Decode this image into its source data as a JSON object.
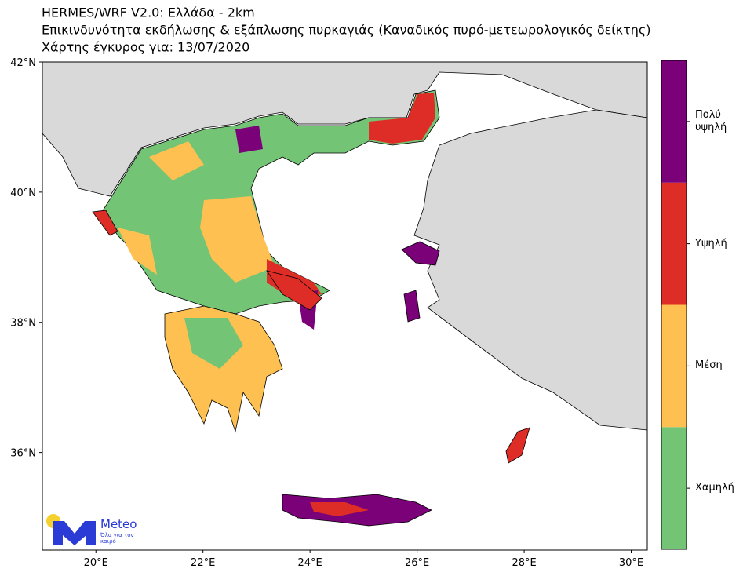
{
  "chart_data": {
    "type": "map",
    "title": [
      "HERMES/WRF V2.0: Ελλάδα - 2km",
      "Επικινδυνότητα εκδήλωσης & εξάπλωσης πυρκαγιάς (Καναδικός πυρό-μετεωρολογικός δείκτης)",
      "Χάρτης έγκυρος για: 13/07/2020"
    ],
    "xlim": [
      19,
      30.3
    ],
    "ylim": [
      34.5,
      42
    ],
    "xticks": [
      {
        "value": 20,
        "label": "20°E"
      },
      {
        "value": 22,
        "label": "22°E"
      },
      {
        "value": 24,
        "label": "24°E"
      },
      {
        "value": 26,
        "label": "26°E"
      },
      {
        "value": 28,
        "label": "28°E"
      },
      {
        "value": 30,
        "label": "30°E"
      }
    ],
    "yticks": [
      {
        "value": 36,
        "label": "36°N"
      },
      {
        "value": 38,
        "label": "38°N"
      },
      {
        "value": 40,
        "label": "40°N"
      },
      {
        "value": 42,
        "label": "42°N"
      }
    ],
    "legend": {
      "categories": [
        "Χαμηλή",
        "Μέση",
        "Υψηλή",
        "Πολύ υψηλή"
      ],
      "colors": [
        "#74c476",
        "#fec050",
        "#de2d26",
        "#7a0177"
      ]
    }
  },
  "logo": {
    "name": "Meteo",
    "tagline": "Όλα για τον καιρό"
  }
}
